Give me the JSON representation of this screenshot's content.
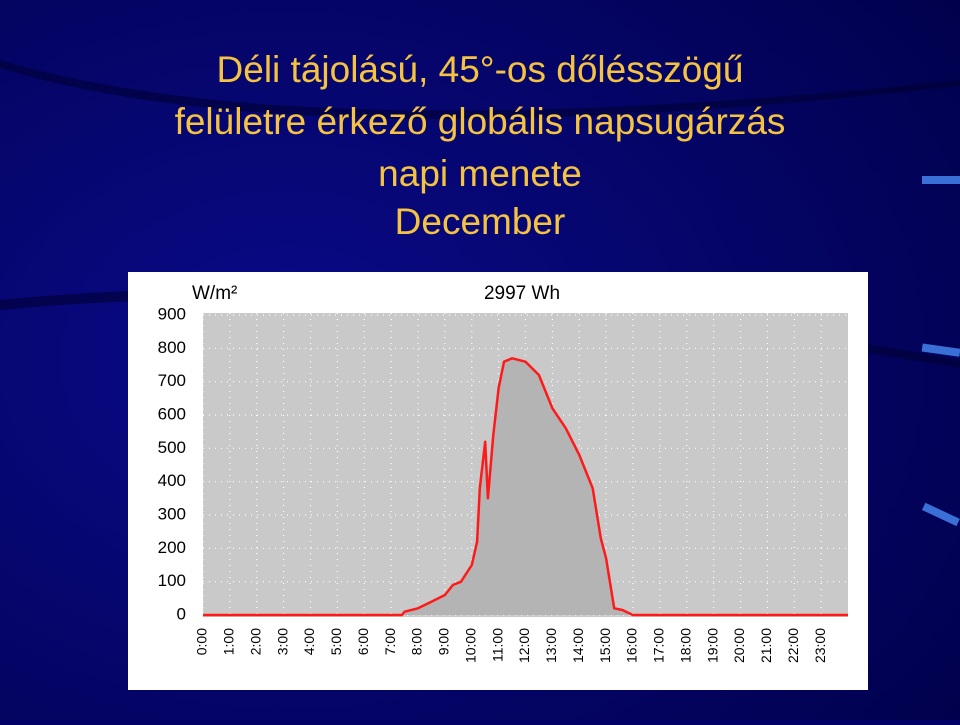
{
  "slide_title": [
    "Déli tájolású, 45°-os dőlésszögű",
    "felületre érkező globális napsugárzás",
    "napi menete",
    "December"
  ],
  "chart_data": {
    "type": "line",
    "y_label": "W/m²",
    "title": "2997 Wh",
    "x": [
      0,
      7.4,
      7.5,
      8,
      8.5,
      9,
      9.3,
      9.6,
      10,
      10.2,
      10.3,
      10.5,
      10.6,
      10.8,
      11,
      11.2,
      11.5,
      12,
      12.5,
      13,
      13.5,
      14,
      14.5,
      14.8,
      15,
      15.1,
      15.3,
      15.6,
      16,
      24
    ],
    "series": [
      {
        "name": "globális napsugárzás",
        "color": "#ff1a1a",
        "values": [
          0,
          0,
          10,
          20,
          40,
          60,
          90,
          100,
          150,
          220,
          380,
          520,
          350,
          540,
          680,
          760,
          770,
          760,
          720,
          620,
          560,
          480,
          380,
          230,
          170,
          120,
          20,
          15,
          0,
          0
        ]
      }
    ],
    "xlim": [
      0,
      24
    ],
    "xticks": [
      {
        "value": 0,
        "label": "0:00"
      },
      {
        "value": 1,
        "label": "1:00"
      },
      {
        "value": 2,
        "label": "2:00"
      },
      {
        "value": 3,
        "label": "3:00"
      },
      {
        "value": 4,
        "label": "4:00"
      },
      {
        "value": 5,
        "label": "5:00"
      },
      {
        "value": 6,
        "label": "6:00"
      },
      {
        "value": 7,
        "label": "7:00"
      },
      {
        "value": 8,
        "label": "8:00"
      },
      {
        "value": 9,
        "label": "9:00"
      },
      {
        "value": 10,
        "label": "10:00"
      },
      {
        "value": 11,
        "label": "11:00"
      },
      {
        "value": 12,
        "label": "12:00"
      },
      {
        "value": 13,
        "label": "13:00"
      },
      {
        "value": 14,
        "label": "14:00"
      },
      {
        "value": 15,
        "label": "15:00"
      },
      {
        "value": 16,
        "label": "16:00"
      },
      {
        "value": 17,
        "label": "17:00"
      },
      {
        "value": 18,
        "label": "18:00"
      },
      {
        "value": 19,
        "label": "19:00"
      },
      {
        "value": 20,
        "label": "20:00"
      },
      {
        "value": 21,
        "label": "21:00"
      },
      {
        "value": 22,
        "label": "22:00"
      },
      {
        "value": 23,
        "label": "23:00"
      }
    ],
    "ylim": [
      0,
      900
    ],
    "yticks": [
      0,
      100,
      200,
      300,
      400,
      500,
      600,
      700,
      800,
      900
    ],
    "grid": true
  }
}
